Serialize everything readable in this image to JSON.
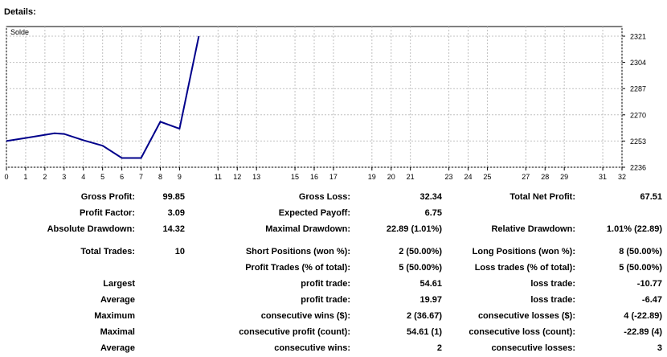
{
  "header": {
    "title": "Details:"
  },
  "chart_data": {
    "type": "line",
    "series": [
      {
        "name": "Solde",
        "x": [
          0,
          1,
          2.5,
          3,
          4,
          5,
          6,
          7,
          8,
          9,
          10
        ],
        "y": [
          2253,
          2255,
          2258,
          2257.6,
          2253.5,
          2250,
          2242,
          2242,
          2265.5,
          2261,
          2321
        ],
        "color": "#00008b"
      }
    ],
    "xticks": [
      0,
      1,
      2,
      3,
      4,
      5,
      6,
      7,
      8,
      9,
      11,
      12,
      13,
      15,
      16,
      17,
      19,
      20,
      21,
      23,
      24,
      25,
      27,
      28,
      29,
      31,
      32
    ],
    "yticks": [
      2321,
      2304,
      2287,
      2270,
      2253,
      2236
    ],
    "xlim": [
      0,
      32
    ],
    "ylim": [
      2236,
      2321
    ],
    "grid": true,
    "legend": "top-left"
  },
  "stats": {
    "rows": [
      [
        "Gross Profit:",
        "99.85",
        "Gross Loss:",
        "32.34",
        "Total Net Profit:",
        "67.51"
      ],
      [
        "Profit Factor:",
        "3.09",
        "Expected Payoff:",
        "6.75",
        "",
        ""
      ],
      [
        "Absolute Drawdown:",
        "14.32",
        "Maximal Drawdown:",
        "22.89 (1.01%)",
        "Relative Drawdown:",
        "1.01% (22.89)"
      ],
      [
        "Total Trades:",
        "10",
        "Short Positions (won %):",
        "2 (50.00%)",
        "Long Positions (won %):",
        "8 (50.00%)"
      ],
      [
        "",
        "",
        "Profit Trades (% of total):",
        "5 (50.00%)",
        "Loss trades (% of total):",
        "5 (50.00%)"
      ],
      [
        "Largest",
        "",
        "profit trade:",
        "54.61",
        "loss trade:",
        "-10.77"
      ],
      [
        "Average",
        "",
        "profit trade:",
        "19.97",
        "loss trade:",
        "-6.47"
      ],
      [
        "Maximum",
        "",
        "consecutive wins ($):",
        "2 (36.67)",
        "consecutive losses ($):",
        "4 (-22.89)"
      ],
      [
        "Maximal",
        "",
        "consecutive profit (count):",
        "54.61 (1)",
        "consecutive loss (count):",
        "-22.89 (4)"
      ],
      [
        "Average",
        "",
        "consecutive wins:",
        "2",
        "consecutive losses:",
        "3"
      ]
    ]
  }
}
